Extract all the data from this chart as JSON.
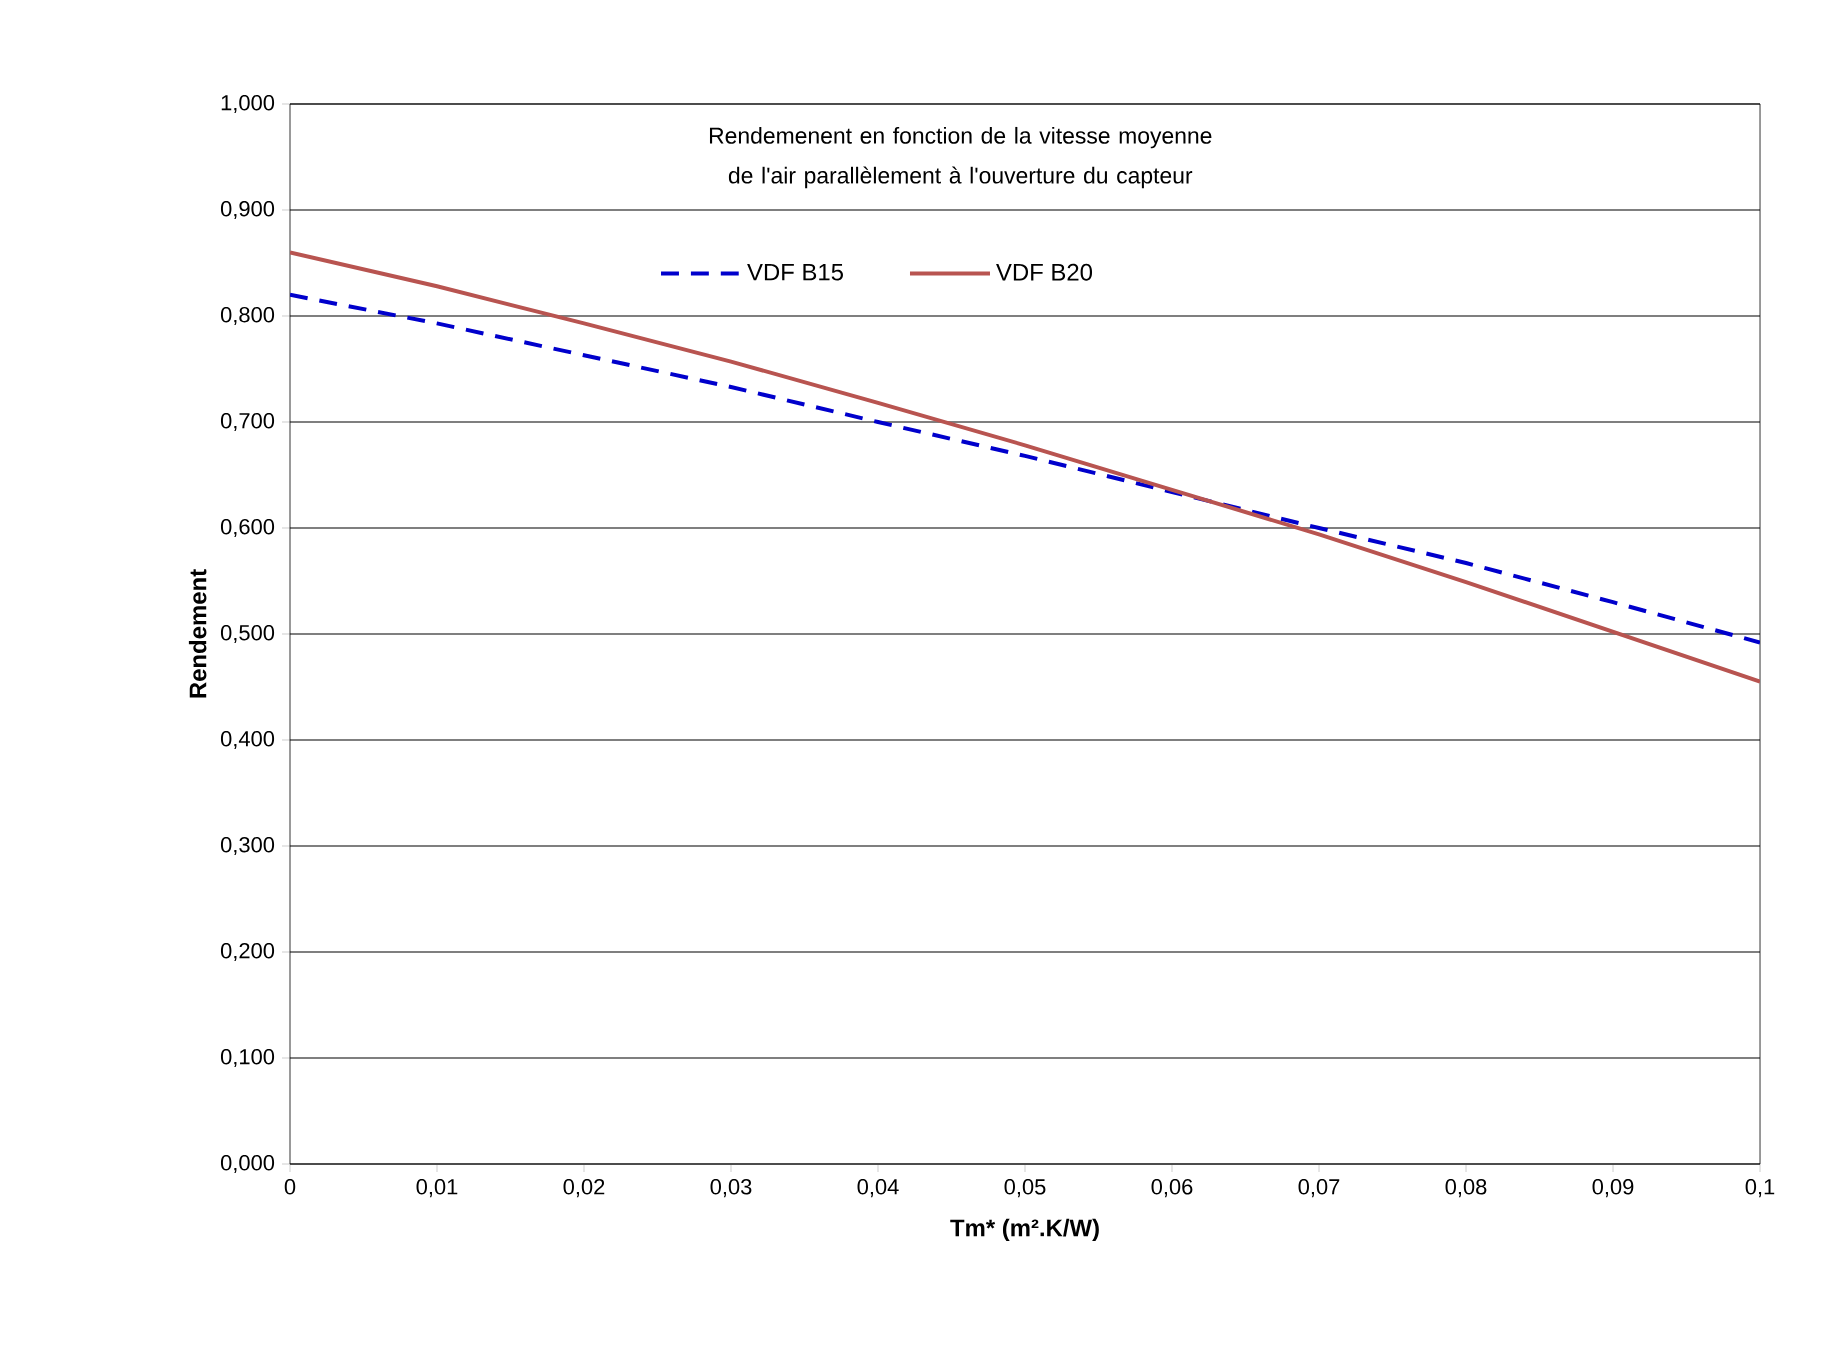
{
  "chart_data": {
    "type": "line",
    "title": "Rendemenent en fonction de la vitesse moyenne de l'air parallèlement à l'ouverture du capteur",
    "xlabel": "Tm* (m².K/W)",
    "ylabel": "Rendement",
    "x": [
      0,
      0.01,
      0.02,
      0.03,
      0.04,
      0.05,
      0.06,
      0.07,
      0.08,
      0.09,
      0.1
    ],
    "series": [
      {
        "name": "VDF B15",
        "color": "#0000cc",
        "line_style": "dashed",
        "values": [
          0.82,
          0.793,
          0.763,
          0.733,
          0.7,
          0.668,
          0.634,
          0.6,
          0.567,
          0.53,
          0.492
        ]
      },
      {
        "name": "VDF B20",
        "color": "#b85450",
        "line_style": "solid",
        "values": [
          0.86,
          0.828,
          0.793,
          0.757,
          0.718,
          0.678,
          0.636,
          0.594,
          0.549,
          0.502,
          0.455
        ]
      }
    ],
    "xlim": [
      0,
      0.1
    ],
    "ylim": [
      0,
      1
    ],
    "xticks": [
      {
        "value": 0,
        "label": "0"
      },
      {
        "value": 0.01,
        "label": "0,01"
      },
      {
        "value": 0.02,
        "label": "0,02"
      },
      {
        "value": 0.03,
        "label": "0,03"
      },
      {
        "value": 0.04,
        "label": "0,04"
      },
      {
        "value": 0.05,
        "label": "0,05"
      },
      {
        "value": 0.06,
        "label": "0,06"
      },
      {
        "value": 0.07,
        "label": "0,07"
      },
      {
        "value": 0.08,
        "label": "0,08"
      },
      {
        "value": 0.09,
        "label": "0,09"
      },
      {
        "value": 0.1,
        "label": "0,1"
      }
    ],
    "yticks": [
      {
        "value": 0,
        "label": "0,000"
      },
      {
        "value": 0.1,
        "label": "0,100"
      },
      {
        "value": 0.2,
        "label": "0,200"
      },
      {
        "value": 0.3,
        "label": "0,300"
      },
      {
        "value": 0.4,
        "label": "0,400"
      },
      {
        "value": 0.5,
        "label": "0,500"
      },
      {
        "value": 0.6,
        "label": "0,600"
      },
      {
        "value": 0.7,
        "label": "0,700"
      },
      {
        "value": 0.8,
        "label": "0,800"
      },
      {
        "value": 0.9,
        "label": "0,900"
      },
      {
        "value": 1,
        "label": "1,000"
      }
    ],
    "grid": "y",
    "legend": "top"
  }
}
